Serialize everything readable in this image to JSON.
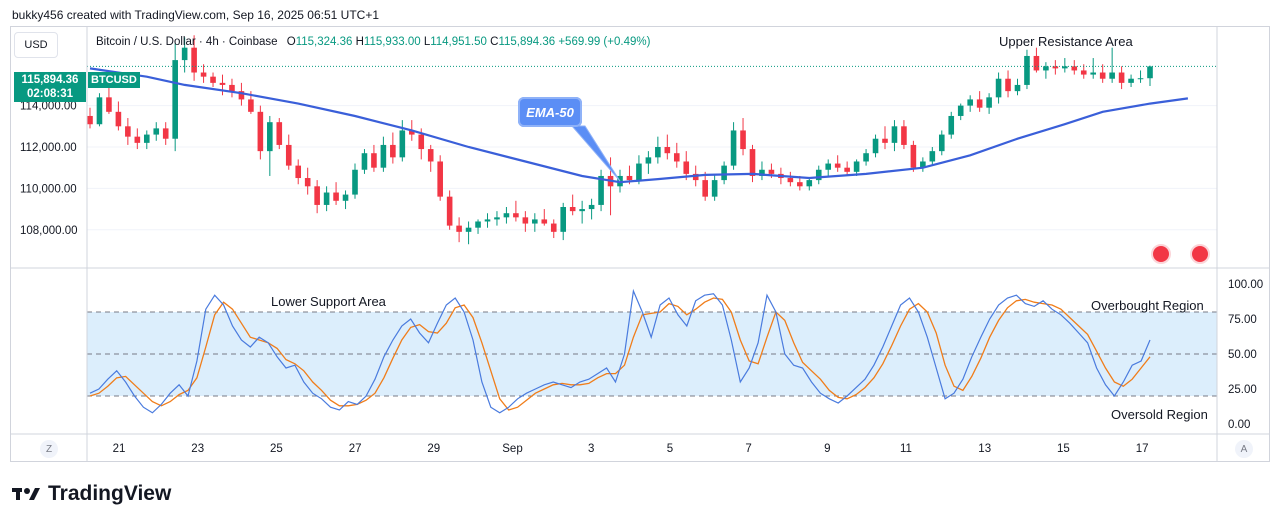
{
  "header": {
    "credit": "bukky456 created with TradingView.com, Sep 16, 2025 06:51 UTC+1"
  },
  "toolbar": {
    "currency": "USD",
    "z_label": "Z",
    "a_label": "A"
  },
  "symbol": {
    "name": "Bitcoin / U.S. Dollar · 4h · Coinbase",
    "open_label": "O",
    "open": "115,324.36",
    "high_label": "H",
    "high": "115,933.00",
    "low_label": "L",
    "low": "114,951.50",
    "close_label": "C",
    "close": "115,894.36",
    "change": "+569.99 (+0.49%)",
    "ticker": "BTCUSD",
    "last_price": "115,894.36",
    "countdown": "02:08:31"
  },
  "annotations": {
    "upper_resistance": "Upper Resistance Area",
    "ema_label": "EMA-50",
    "lower_support": "Lower Support Area",
    "overbought": "Overbought Region",
    "oversold": "Oversold Region"
  },
  "colors": {
    "up": "#089981",
    "down": "#f23645",
    "ema": "#3a5fd9",
    "stoch_k": "#4a7bde",
    "stoch_d": "#f07d1a",
    "band": "#dceefc"
  },
  "icons": {
    "flag": "us-flag-icon",
    "logo": "tradingview-logo-icon"
  },
  "footer": {
    "brand": "TradingView"
  },
  "chart_data": [
    {
      "type": "candlestick",
      "title": "Bitcoin / U.S. Dollar · 4h · Coinbase",
      "y_ticks": [
        "114,000.00",
        "112,000.00",
        "110,000.00",
        "108,000.00"
      ],
      "y_tick_values": [
        114000,
        112000,
        110000,
        108000
      ],
      "ylim": [
        106200,
        117800
      ],
      "last_price": 115894.36,
      "x_ticks": [
        "21",
        "23",
        "25",
        "27",
        "29",
        "Sep",
        "3",
        "5",
        "7",
        "9",
        "11",
        "13",
        "15",
        "17"
      ],
      "candles": [
        [
          113500,
          113900,
          112900,
          113100
        ],
        [
          113100,
          114600,
          113000,
          114400
        ],
        [
          114400,
          114900,
          113600,
          113700
        ],
        [
          113700,
          114200,
          112800,
          113000
        ],
        [
          113000,
          113400,
          112100,
          112500
        ],
        [
          112500,
          112900,
          111900,
          112200
        ],
        [
          112200,
          112800,
          111900,
          112600
        ],
        [
          112600,
          113200,
          112300,
          112900
        ],
        [
          112900,
          113200,
          112100,
          112400
        ],
        [
          112400,
          117000,
          111800,
          116200
        ],
        [
          116200,
          117300,
          115600,
          116800
        ],
        [
          116800,
          117400,
          115200,
          115600
        ],
        [
          115600,
          116000,
          115100,
          115400
        ],
        [
          115400,
          115600,
          114900,
          115100
        ],
        [
          115100,
          115500,
          114500,
          115000
        ],
        [
          115000,
          115300,
          114400,
          114700
        ],
        [
          114700,
          115100,
          114000,
          114300
        ],
        [
          114300,
          114700,
          113600,
          113700
        ],
        [
          113700,
          114000,
          111400,
          111800
        ],
        [
          111800,
          113500,
          110600,
          113200
        ],
        [
          113200,
          113400,
          111900,
          112100
        ],
        [
          112100,
          112600,
          110900,
          111100
        ],
        [
          111100,
          111400,
          110200,
          110500
        ],
        [
          110500,
          111000,
          109700,
          110100
        ],
        [
          110100,
          110400,
          108800,
          109200
        ],
        [
          109200,
          110100,
          108900,
          109800
        ],
        [
          109800,
          110300,
          109200,
          109400
        ],
        [
          109400,
          109900,
          109000,
          109700
        ],
        [
          109700,
          111200,
          109500,
          110900
        ],
        [
          110900,
          111900,
          110700,
          111700
        ],
        [
          111700,
          112100,
          110800,
          111000
        ],
        [
          111000,
          112500,
          110800,
          112100
        ],
        [
          112100,
          112700,
          111200,
          111500
        ],
        [
          111500,
          113300,
          111300,
          112800
        ],
        [
          112800,
          113300,
          112300,
          112600
        ],
        [
          112600,
          112900,
          111400,
          111900
        ],
        [
          111900,
          112100,
          110800,
          111300
        ],
        [
          111300,
          111600,
          109400,
          109600
        ],
        [
          109600,
          109900,
          108000,
          108200
        ],
        [
          108200,
          108600,
          107400,
          107900
        ],
        [
          107900,
          108400,
          107300,
          108100
        ],
        [
          108100,
          108500,
          107800,
          108400
        ],
        [
          108400,
          108800,
          108100,
          108500
        ],
        [
          108500,
          108900,
          108200,
          108600
        ],
        [
          108600,
          109100,
          108300,
          108800
        ],
        [
          108800,
          109400,
          108400,
          108600
        ],
        [
          108600,
          108900,
          107900,
          108300
        ],
        [
          108300,
          108800,
          107900,
          108500
        ],
        [
          108500,
          109000,
          108200,
          108300
        ],
        [
          108300,
          108500,
          107600,
          107900
        ],
        [
          107900,
          109300,
          107500,
          109100
        ],
        [
          109100,
          109700,
          108700,
          108900
        ],
        [
          108900,
          109400,
          108300,
          109000
        ],
        [
          109000,
          109500,
          108500,
          109200
        ],
        [
          109200,
          110900,
          108900,
          110600
        ],
        [
          110600,
          111500,
          108700,
          110100
        ],
        [
          110100,
          110900,
          109800,
          110600
        ],
        [
          110600,
          111100,
          110200,
          110400
        ],
        [
          110400,
          111600,
          110200,
          111200
        ],
        [
          111200,
          111800,
          110700,
          111500
        ],
        [
          111500,
          112500,
          111200,
          112000
        ],
        [
          112000,
          112600,
          111400,
          111700
        ],
        [
          111700,
          112200,
          111000,
          111300
        ],
        [
          111300,
          111800,
          110400,
          110700
        ],
        [
          110700,
          111100,
          110100,
          110400
        ],
        [
          110400,
          110800,
          109400,
          109600
        ],
        [
          109600,
          110700,
          109400,
          110400
        ],
        [
          110400,
          111300,
          110200,
          111100
        ],
        [
          111100,
          113200,
          110900,
          112800
        ],
        [
          112800,
          113400,
          111600,
          111900
        ],
        [
          111900,
          112100,
          110300,
          110600
        ],
        [
          110600,
          111300,
          110400,
          110900
        ],
        [
          110900,
          111200,
          110500,
          110700
        ],
        [
          110700,
          111000,
          110200,
          110500
        ],
        [
          110500,
          110800,
          110100,
          110300
        ],
        [
          110300,
          110600,
          109900,
          110100
        ],
        [
          110100,
          110500,
          109900,
          110400
        ],
        [
          110400,
          111100,
          110200,
          110900
        ],
        [
          110900,
          111400,
          110600,
          111200
        ],
        [
          111200,
          111600,
          110800,
          111000
        ],
        [
          111000,
          111300,
          110600,
          110800
        ],
        [
          110800,
          111400,
          110600,
          111300
        ],
        [
          111300,
          111900,
          111100,
          111700
        ],
        [
          111700,
          112600,
          111500,
          112400
        ],
        [
          112400,
          113000,
          111900,
          112200
        ],
        [
          112200,
          113300,
          111800,
          113000
        ],
        [
          113000,
          113300,
          111900,
          112100
        ],
        [
          112100,
          112300,
          110800,
          111000
        ],
        [
          111000,
          111500,
          110800,
          111300
        ],
        [
          111300,
          112000,
          111100,
          111800
        ],
        [
          111800,
          112800,
          111600,
          112600
        ],
        [
          112600,
          113700,
          112400,
          113500
        ],
        [
          113500,
          114100,
          113300,
          114000
        ],
        [
          114000,
          114500,
          113700,
          114300
        ],
        [
          114300,
          114700,
          113700,
          113900
        ],
        [
          113900,
          114600,
          113600,
          114400
        ],
        [
          114400,
          115600,
          114100,
          115300
        ],
        [
          115300,
          115700,
          114400,
          114700
        ],
        [
          114700,
          115300,
          114500,
          115000
        ],
        [
          115000,
          116700,
          114800,
          116400
        ],
        [
          116400,
          116800,
          115600,
          115700
        ],
        [
          115700,
          116100,
          115300,
          115900
        ],
        [
          115900,
          116200,
          115500,
          115800
        ],
        [
          115800,
          116300,
          115600,
          115900
        ],
        [
          115900,
          116200,
          115500,
          115700
        ],
        [
          115700,
          116000,
          115300,
          115500
        ],
        [
          115500,
          116300,
          115300,
          115600
        ],
        [
          115600,
          116000,
          115100,
          115300
        ],
        [
          115300,
          116800,
          115100,
          115600
        ],
        [
          115600,
          115900,
          114800,
          115100
        ],
        [
          115100,
          115500,
          114900,
          115300
        ],
        [
          115300,
          115700,
          115100,
          115324
        ],
        [
          115324,
          115933,
          114951,
          115894
        ]
      ],
      "ema50": [
        [
          0,
          115800
        ],
        [
          6,
          115400
        ],
        [
          10,
          115000
        ],
        [
          16,
          114600
        ],
        [
          22,
          114100
        ],
        [
          28,
          113500
        ],
        [
          34,
          112800
        ],
        [
          40,
          112000
        ],
        [
          46,
          111300
        ],
        [
          52,
          110600
        ],
        [
          56,
          110300
        ],
        [
          60,
          110450
        ],
        [
          65,
          110650
        ],
        [
          70,
          110700
        ],
        [
          76,
          110500
        ],
        [
          82,
          110700
        ],
        [
          88,
          111000
        ],
        [
          93,
          111600
        ],
        [
          98,
          112400
        ],
        [
          103,
          113100
        ],
        [
          107,
          113700
        ],
        [
          112,
          114100
        ],
        [
          116,
          114350
        ]
      ]
    },
    {
      "type": "line",
      "name": "stochastic",
      "y_ticks": [
        "100.00",
        "75.00",
        "50.00",
        "25.00",
        "0.00"
      ],
      "y_tick_values": [
        100,
        75,
        50,
        25,
        0
      ],
      "ylim": [
        -5,
        105
      ],
      "levels": [
        80,
        50,
        20
      ],
      "k": [
        22,
        25,
        32,
        38,
        30,
        20,
        12,
        8,
        14,
        22,
        28,
        20,
        45,
        82,
        92,
        85,
        70,
        60,
        55,
        62,
        58,
        48,
        40,
        42,
        30,
        22,
        18,
        12,
        10,
        16,
        14,
        20,
        32,
        48,
        60,
        70,
        75,
        65,
        58,
        72,
        85,
        90,
        80,
        60,
        30,
        12,
        8,
        12,
        18,
        22,
        25,
        28,
        30,
        28,
        26,
        30,
        32,
        36,
        40,
        30,
        50,
        95,
        80,
        62,
        85,
        90,
        78,
        70,
        88,
        92,
        93,
        85,
        60,
        30,
        40,
        58,
        92,
        80,
        50,
        42,
        40,
        30,
        22,
        18,
        15,
        20,
        26,
        32,
        42,
        55,
        70,
        85,
        90,
        80,
        62,
        40,
        18,
        22,
        32,
        48,
        62,
        75,
        85,
        90,
        92,
        86,
        84,
        88,
        82,
        78,
        72,
        65,
        58,
        40,
        28,
        20,
        30,
        42,
        45,
        60
      ],
      "d": [
        20,
        22,
        27,
        33,
        34,
        28,
        22,
        16,
        13,
        16,
        21,
        24,
        33,
        55,
        78,
        87,
        82,
        72,
        62,
        60,
        58,
        54,
        46,
        43,
        38,
        30,
        24,
        17,
        13,
        13,
        14,
        17,
        22,
        33,
        47,
        60,
        69,
        71,
        66,
        65,
        72,
        83,
        85,
        76,
        58,
        38,
        18,
        10,
        12,
        17,
        22,
        25,
        28,
        29,
        28,
        28,
        29,
        33,
        36,
        36,
        42,
        62,
        78,
        79,
        80,
        86,
        84,
        78,
        82,
        87,
        90,
        89,
        80,
        60,
        45,
        43,
        62,
        80,
        74,
        58,
        44,
        38,
        32,
        24,
        19,
        18,
        21,
        26,
        33,
        43,
        56,
        70,
        82,
        86,
        80,
        65,
        42,
        27,
        24,
        34,
        47,
        62,
        74,
        83,
        88,
        89,
        87,
        86,
        85,
        82,
        76,
        70,
        64,
        52,
        40,
        30,
        27,
        32,
        40,
        48
      ]
    }
  ]
}
